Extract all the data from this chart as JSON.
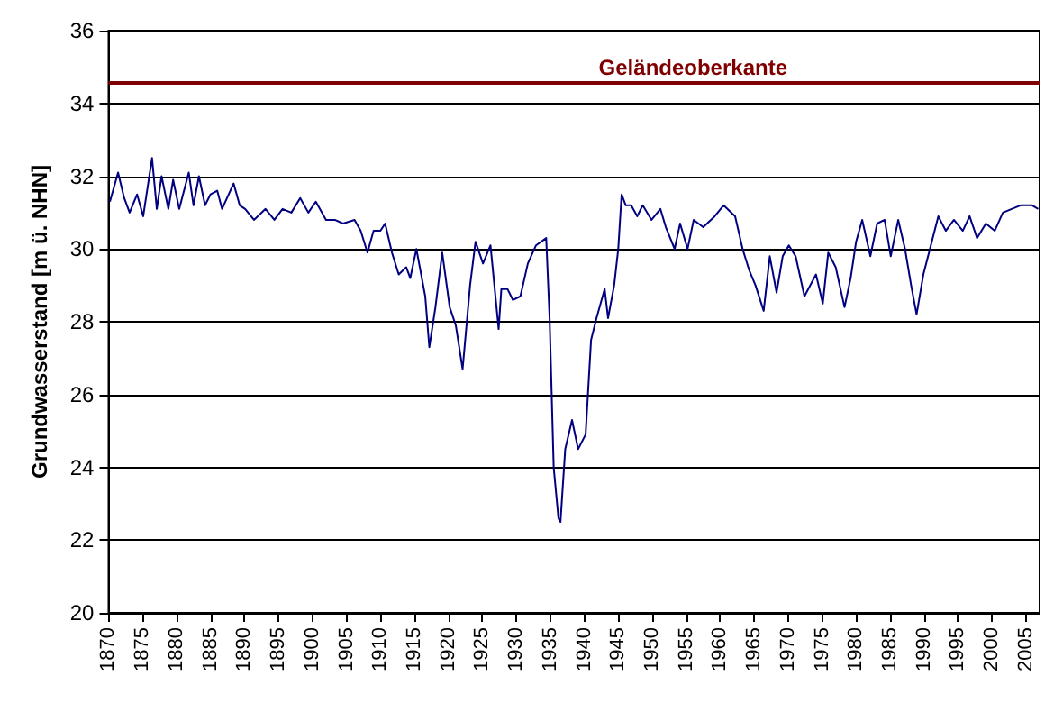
{
  "chart_data": {
    "type": "line",
    "ylabel": "Grundwasserstand [m ü. NHN]",
    "xlim": [
      1870,
      2007
    ],
    "xticks": [
      1870,
      1875,
      1880,
      1885,
      1890,
      1895,
      1900,
      1905,
      1910,
      1915,
      1920,
      1925,
      1930,
      1935,
      1940,
      1945,
      1950,
      1955,
      1960,
      1965,
      1970,
      1975,
      1980,
      1985,
      1990,
      1995,
      2000,
      2005
    ],
    "ylim": [
      20,
      36
    ],
    "yticks": [
      20,
      22,
      24,
      26,
      28,
      30,
      32,
      34,
      36
    ],
    "grid": "y",
    "marker": "none",
    "line_style": "solid",
    "ref_lines": [
      {
        "axis": "y",
        "value": 34.6,
        "label": "Geländeoberkante",
        "color": "#800000"
      }
    ],
    "series": [
      {
        "color": "#000080",
        "x": [
          1870.2,
          1871.4,
          1872.3,
          1873.1,
          1874.2,
          1875.1,
          1876.4,
          1877.1,
          1877.8,
          1878.8,
          1879.5,
          1880.4,
          1881.8,
          1882.5,
          1883.3,
          1884.2,
          1885,
          1886,
          1886.7,
          1888.4,
          1889.3,
          1890.1,
          1891.4,
          1893.1,
          1894.4,
          1895.6,
          1896.9,
          1898.2,
          1899.4,
          1900.5,
          1902,
          1903.3,
          1904.5,
          1906.2,
          1907.1,
          1908.1,
          1909,
          1910,
          1910.7,
          1911.7,
          1912.7,
          1913.8,
          1914.4,
          1915.3,
          1916,
          1916.6,
          1917.2,
          1918.1,
          1919.1,
          1920.2,
          1921.1,
          1922.1,
          1923.2,
          1924,
          1925.1,
          1926.2,
          1927.4,
          1927.8,
          1928.7,
          1929.5,
          1930.6,
          1931.7,
          1932.9,
          1934.4,
          1934.9,
          1935.5,
          1936.2,
          1936.5,
          1937.2,
          1938.2,
          1939.1,
          1940.2,
          1941,
          1941.8,
          1943,
          1943.5,
          1944.4,
          1945,
          1945.5,
          1946.1,
          1946.9,
          1947.8,
          1948.6,
          1949.9,
          1951.2,
          1952,
          1953.3,
          1954.1,
          1955.2,
          1956.1,
          1957.5,
          1959.2,
          1960.5,
          1962.2,
          1963.3,
          1964.3,
          1965.2,
          1966.4,
          1967.3,
          1968.3,
          1969.2,
          1970.1,
          1971.1,
          1972.4,
          1974.1,
          1975.1,
          1975.9,
          1977,
          1978.3,
          1979.2,
          1980,
          1980.9,
          1982.1,
          1983.1,
          1984.2,
          1985.1,
          1986.2,
          1987.2,
          1988.1,
          1988.9,
          1989.9,
          1991,
          1992.1,
          1993.2,
          1994.4,
          1995.7,
          1996.7,
          1997.8,
          1999.1,
          2000.4,
          2001.6,
          2002.9,
          2004.2,
          2005.9,
          2006.8
        ],
        "values": [
          31.3,
          32.1,
          31.4,
          31.0,
          31.5,
          30.9,
          32.5,
          31.1,
          32.0,
          31.1,
          31.9,
          31.1,
          32.1,
          31.2,
          32.0,
          31.2,
          31.5,
          31.6,
          31.1,
          31.8,
          31.2,
          31.1,
          30.8,
          31.1,
          30.8,
          31.1,
          31.0,
          31.4,
          31.0,
          31.3,
          30.8,
          30.8,
          30.7,
          30.8,
          30.5,
          29.9,
          30.5,
          30.5,
          30.7,
          29.9,
          29.3,
          29.5,
          29.2,
          30.0,
          29.3,
          28.7,
          27.3,
          28.4,
          29.9,
          28.4,
          27.9,
          26.7,
          29.0,
          30.2,
          29.6,
          30.1,
          27.8,
          28.9,
          28.9,
          28.6,
          28.7,
          29.6,
          30.1,
          30.3,
          28.1,
          24.0,
          22.6,
          22.5,
          24.5,
          25.3,
          24.5,
          24.9,
          27.5,
          28.1,
          28.9,
          28.1,
          29.0,
          30.0,
          31.5,
          31.2,
          31.2,
          30.9,
          31.2,
          30.8,
          31.1,
          30.6,
          30.0,
          30.7,
          30.0,
          30.8,
          30.6,
          30.9,
          31.2,
          30.9,
          30.0,
          29.4,
          29.0,
          28.3,
          29.8,
          28.8,
          29.8,
          30.1,
          29.8,
          28.7,
          29.3,
          28.5,
          29.9,
          29.5,
          28.4,
          29.2,
          30.2,
          30.8,
          29.8,
          30.7,
          30.8,
          29.8,
          30.8,
          30.0,
          29.0,
          28.2,
          29.3,
          30.1,
          30.9,
          30.5,
          30.8,
          30.5,
          30.9,
          30.3,
          30.7,
          30.5,
          31.0,
          31.1,
          31.2,
          31.2,
          31.1
        ]
      }
    ]
  }
}
